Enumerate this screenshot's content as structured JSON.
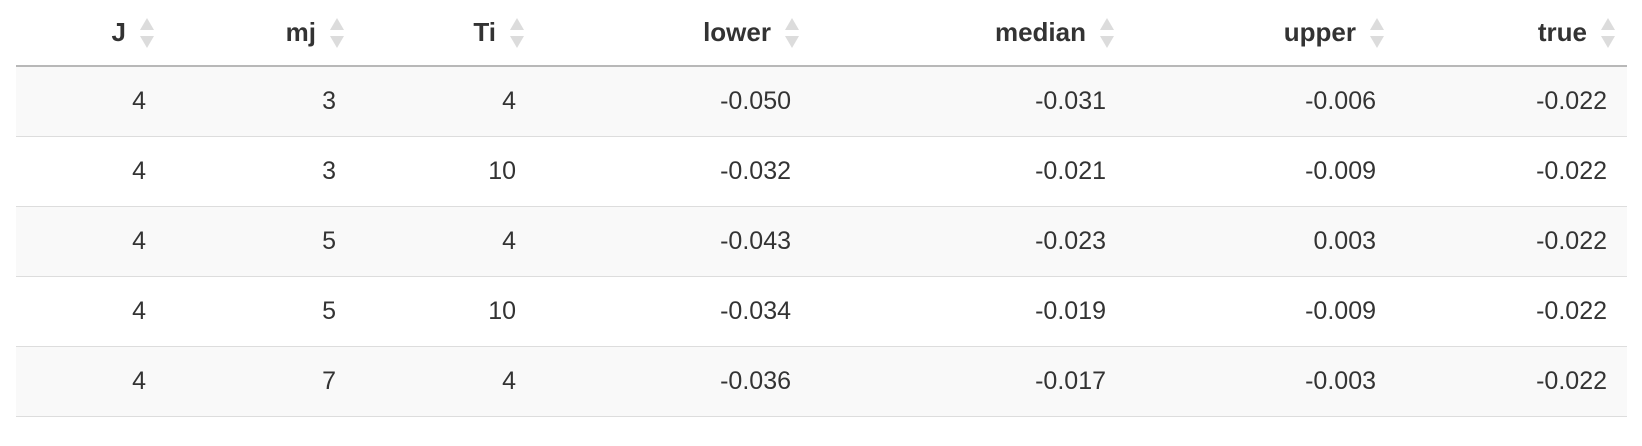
{
  "table": {
    "columns": [
      "J",
      "mj",
      "Ti",
      "lower",
      "median",
      "upper",
      "true"
    ],
    "rows": [
      [
        "4",
        "3",
        "4",
        "-0.050",
        "-0.031",
        "-0.006",
        "-0.022"
      ],
      [
        "4",
        "3",
        "10",
        "-0.032",
        "-0.021",
        "-0.009",
        "-0.022"
      ],
      [
        "4",
        "5",
        "4",
        "-0.043",
        "-0.023",
        "0.003",
        "-0.022"
      ],
      [
        "4",
        "5",
        "10",
        "-0.034",
        "-0.019",
        "-0.009",
        "-0.022"
      ],
      [
        "4",
        "7",
        "4",
        "-0.036",
        "-0.017",
        "-0.003",
        "-0.022"
      ]
    ],
    "sort_icon": "sort-both-icon",
    "colors": {
      "header_text": "#333333",
      "sort_icon": "#dcdcdc",
      "row_striped": "#f9f9f9",
      "row_plain": "#ffffff",
      "border_header": "#b8b8b8",
      "border_row": "#dddddd"
    }
  }
}
